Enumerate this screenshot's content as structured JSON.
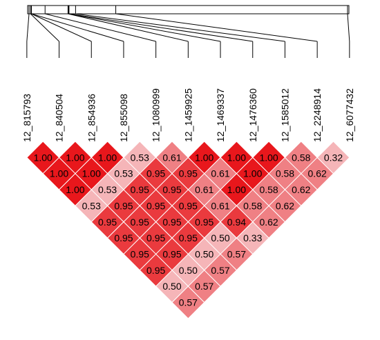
{
  "snps": [
    "12_815793",
    "12_840504",
    "12_854936",
    "12_855098",
    "12_1080999",
    "12_1459925",
    "12_1469337",
    "12_1476360",
    "12_1585012",
    "12_2248914",
    "12_6077432"
  ],
  "snp_track_positions": [
    815793,
    840504,
    854936,
    855098,
    1080999,
    1459925,
    1469337,
    1476360,
    1585012,
    2248914,
    6077432
  ],
  "colors": {
    "strong": "#e8171c",
    "high": "#ea3a3e",
    "mid": "#ef8084",
    "low": "#f5b5b8",
    "line": "#000000",
    "border": "#ffffff"
  },
  "ld_matrix": [
    [
      "1.00",
      "1.00",
      "1.00",
      "0.53",
      "0.61",
      "1.00",
      "1.00",
      "1.00",
      "0.58",
      "0.32"
    ],
    [
      "1.00",
      "1.00",
      "0.53",
      "0.95",
      "0.95",
      "0.61",
      "1.00",
      "0.58",
      "0.62"
    ],
    [
      "1.00",
      "0.53",
      "0.95",
      "0.95",
      "0.61",
      "1.00",
      "0.58",
      "0.62"
    ],
    [
      "0.53",
      "0.95",
      "0.95",
      "0.95",
      "0.61",
      "0.58",
      "0.62"
    ],
    [
      "0.95",
      "0.95",
      "0.95",
      "0.95",
      "0.94",
      "0.62"
    ],
    [
      "0.95",
      "0.95",
      "0.95",
      "0.50",
      "0.33"
    ],
    [
      "0.95",
      "0.95",
      "0.50",
      "0.57"
    ],
    [
      "0.95",
      "0.50",
      "0.57"
    ],
    [
      "0.50",
      "0.57"
    ],
    [
      "0.57"
    ]
  ]
}
